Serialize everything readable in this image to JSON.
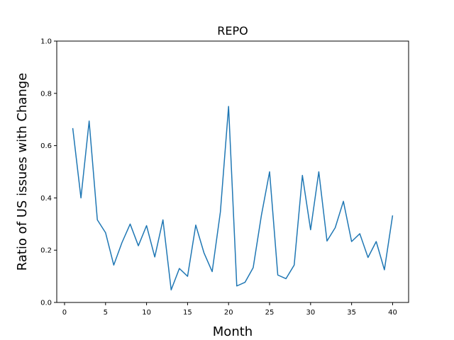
{
  "chart_data": {
    "type": "line",
    "title": "REPO",
    "xlabel": "Month",
    "ylabel": "Ratio of US issues with Change",
    "xlim": [
      -0.95,
      41.95
    ],
    "ylim": [
      0.0,
      1.0
    ],
    "x_ticks": [
      0,
      5,
      10,
      15,
      20,
      25,
      30,
      35,
      40
    ],
    "y_ticks": [
      0.0,
      0.2,
      0.4,
      0.6,
      0.8,
      1.0
    ],
    "x_tick_labels": [
      "0",
      "5",
      "10",
      "15",
      "20",
      "25",
      "30",
      "35",
      "40"
    ],
    "y_tick_labels": [
      "0.0",
      "0.2",
      "0.4",
      "0.6",
      "0.8",
      "1.0"
    ],
    "grid": false,
    "series": [
      {
        "color": "#1f77b4",
        "x": [
          1,
          2,
          3,
          4,
          5,
          6,
          7,
          8,
          9,
          10,
          11,
          12,
          13,
          14,
          15,
          16,
          17,
          18,
          19,
          20,
          21,
          22,
          23,
          24,
          25,
          26,
          27,
          28,
          29,
          30,
          31,
          32,
          33,
          34,
          35,
          36,
          37,
          38,
          39,
          40
        ],
        "y": [
          0.667,
          0.4,
          0.694,
          0.316,
          0.267,
          0.143,
          0.229,
          0.3,
          0.217,
          0.294,
          0.174,
          0.316,
          0.048,
          0.13,
          0.1,
          0.296,
          0.19,
          0.118,
          0.346,
          0.75,
          0.063,
          0.077,
          0.133,
          0.333,
          0.5,
          0.105,
          0.091,
          0.143,
          0.486,
          0.278,
          0.5,
          0.235,
          0.286,
          0.387,
          0.233,
          0.263,
          0.172,
          0.233,
          0.125,
          0.333
        ]
      }
    ]
  }
}
